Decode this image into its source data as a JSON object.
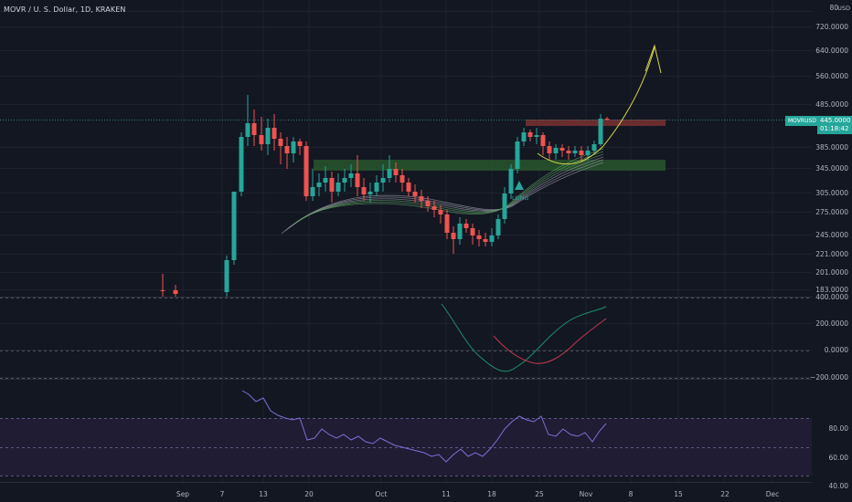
{
  "header": {
    "title": "MOVR / U. S. Dollar, 1D, KRAKEN"
  },
  "price_axis": {
    "unit": "USD",
    "ticks": [
      "80",
      "720.0000",
      "640.0000",
      "560.0000",
      "485.0000",
      "385.0000",
      "345.0000",
      "305.0000",
      "275.0000",
      "245.0000",
      "221.0000",
      "201.0000",
      "183.0000"
    ]
  },
  "symbol_badge": "MOVRUSD",
  "price_badge": {
    "price": "445.0000",
    "countdown": "01:18:42"
  },
  "osc1_axis": {
    "ticks": [
      "400.0000",
      "200.0000",
      "0.0000",
      "−200.0000"
    ]
  },
  "osc2_axis": {
    "ticks": [
      "80.00",
      "60.00",
      "40.00"
    ]
  },
  "time_axis": {
    "labels": [
      "Sep",
      "7",
      "13",
      "20",
      "Oct",
      "11",
      "18",
      "25",
      "Nov",
      "8",
      "15",
      "22",
      "Dec"
    ]
  },
  "annotation": {
    "long_label": "LONG"
  },
  "colors": {
    "up": "#26a69a",
    "down": "#ef5350",
    "support_zone": "#2e7d32",
    "resistance_zone": "#8e3b3b",
    "arrow": "#d4d64a",
    "rsi_line": "#7e6fd6",
    "rsi_band": "#2a2440",
    "macd_fast": "#1f8f6a",
    "macd_slow": "#c0394b"
  }
}
